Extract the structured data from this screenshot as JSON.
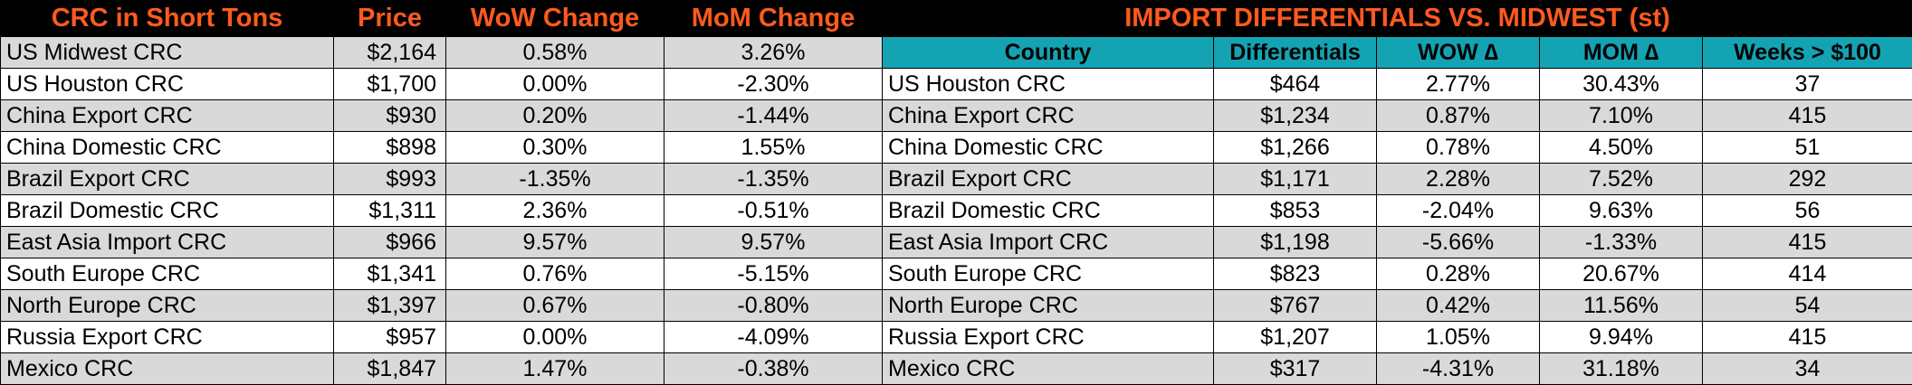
{
  "left": {
    "headers": [
      "CRC in Short Tons",
      "Price",
      "WoW Change",
      "MoM Change"
    ],
    "rows": [
      {
        "name": "US Midwest CRC",
        "price": "$2,164",
        "wow": "0.58%",
        "mom": "3.26%"
      },
      {
        "name": "US Houston CRC",
        "price": "$1,700",
        "wow": "0.00%",
        "mom": "-2.30%"
      },
      {
        "name": "China Export CRC",
        "price": "$930",
        "wow": "0.20%",
        "mom": "-1.44%"
      },
      {
        "name": "China Domestic CRC",
        "price": "$898",
        "wow": "0.30%",
        "mom": "1.55%"
      },
      {
        "name": "Brazil Export CRC",
        "price": "$993",
        "wow": "-1.35%",
        "mom": "-1.35%"
      },
      {
        "name": "Brazil Domestic CRC",
        "price": "$1,311",
        "wow": "2.36%",
        "mom": "-0.51%"
      },
      {
        "name": "East Asia Import CRC",
        "price": "$966",
        "wow": "9.57%",
        "mom": "9.57%"
      },
      {
        "name": "South Europe CRC",
        "price": "$1,341",
        "wow": "0.76%",
        "mom": "-5.15%"
      },
      {
        "name": "North Europe CRC",
        "price": "$1,397",
        "wow": "0.67%",
        "mom": "-0.80%"
      },
      {
        "name": "Russia Export CRC",
        "price": "$957",
        "wow": "0.00%",
        "mom": "-4.09%"
      },
      {
        "name": "Mexico CRC",
        "price": "$1,847",
        "wow": "1.47%",
        "mom": "-0.38%"
      }
    ]
  },
  "right": {
    "title": "IMPORT DIFFERENTIALS VS. MIDWEST (st)",
    "headers": [
      "Country",
      "Differentials",
      "WOW ∆",
      "MOM ∆",
      "Weeks > $100"
    ],
    "rows": [
      {
        "name": "US Houston CRC",
        "diff": "$464",
        "wow": "2.77%",
        "mom": "30.43%",
        "weeks": "37"
      },
      {
        "name": "China Export CRC",
        "diff": "$1,234",
        "wow": "0.87%",
        "mom": "7.10%",
        "weeks": "415"
      },
      {
        "name": "China Domestic CRC",
        "diff": "$1,266",
        "wow": "0.78%",
        "mom": "4.50%",
        "weeks": "51"
      },
      {
        "name": "Brazil Export CRC",
        "diff": "$1,171",
        "wow": "2.28%",
        "mom": "7.52%",
        "weeks": "292"
      },
      {
        "name": "Brazil Domestic CRC",
        "diff": "$853",
        "wow": "-2.04%",
        "mom": "9.63%",
        "weeks": "56"
      },
      {
        "name": "East Asia Import CRC",
        "diff": "$1,198",
        "wow": "-5.66%",
        "mom": "-1.33%",
        "weeks": "415"
      },
      {
        "name": "South Europe CRC",
        "diff": "$823",
        "wow": "0.28%",
        "mom": "20.67%",
        "weeks": "414"
      },
      {
        "name": "North Europe CRC",
        "diff": "$767",
        "wow": "0.42%",
        "mom": "11.56%",
        "weeks": "54"
      },
      {
        "name": "Russia Export CRC",
        "diff": "$1,207",
        "wow": "1.05%",
        "mom": "9.94%",
        "weeks": "415"
      },
      {
        "name": "Mexico CRC",
        "diff": "$317",
        "wow": "-4.31%",
        "mom": "31.18%",
        "weeks": "34"
      }
    ]
  },
  "colors": {
    "title_background": "#000000",
    "title_text": "#ff5a1f",
    "column_header_background": "#14a3b3",
    "row_shade": "#d9d9d9",
    "row_plain": "#ffffff"
  }
}
